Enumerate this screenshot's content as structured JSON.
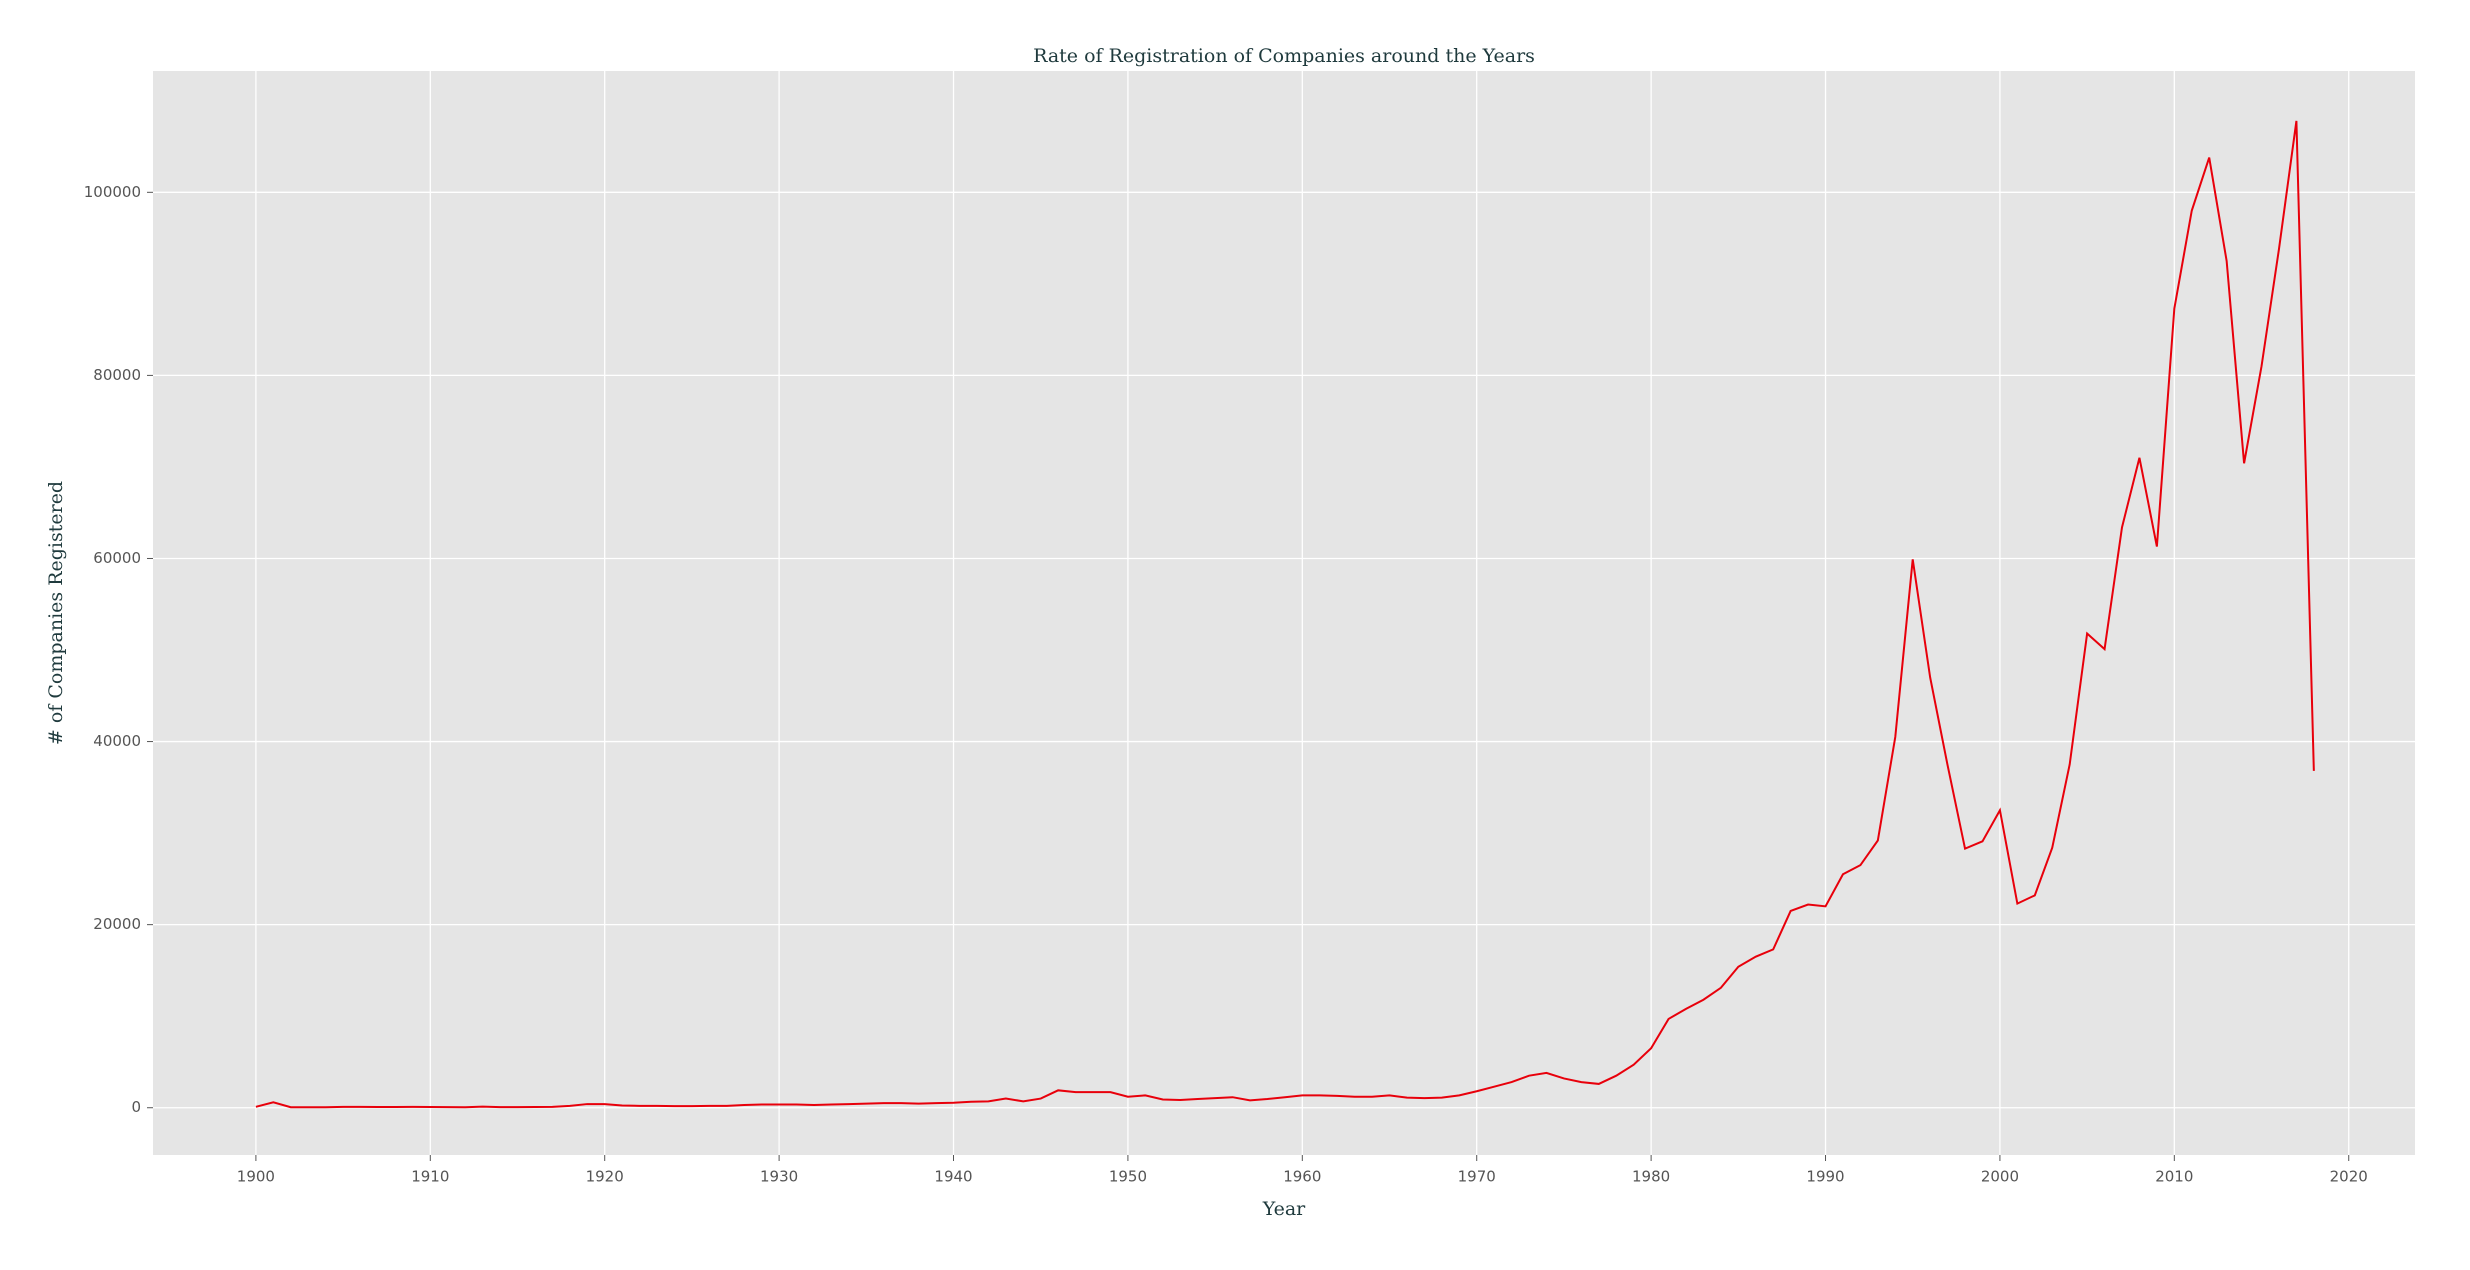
{
  "chart_data": {
    "type": "line",
    "title": "Rate of Registration of Companies around the Years",
    "x_label": "Year",
    "y_label": "# of Companies Registered",
    "x": [
      1900,
      1901,
      1902,
      1903,
      1904,
      1905,
      1906,
      1907,
      1908,
      1909,
      1910,
      1911,
      1912,
      1913,
      1914,
      1915,
      1916,
      1917,
      1918,
      1919,
      1920,
      1921,
      1922,
      1923,
      1924,
      1925,
      1926,
      1927,
      1928,
      1929,
      1930,
      1931,
      1932,
      1933,
      1934,
      1935,
      1936,
      1937,
      1938,
      1939,
      1940,
      1941,
      1942,
      1943,
      1944,
      1945,
      1946,
      1947,
      1948,
      1949,
      1950,
      1951,
      1952,
      1953,
      1954,
      1955,
      1956,
      1957,
      1958,
      1959,
      1960,
      1961,
      1962,
      1963,
      1964,
      1965,
      1966,
      1967,
      1968,
      1969,
      1970,
      1971,
      1972,
      1973,
      1974,
      1975,
      1976,
      1977,
      1978,
      1979,
      1980,
      1981,
      1982,
      1983,
      1984,
      1985,
      1986,
      1987,
      1988,
      1989,
      1990,
      1991,
      1992,
      1993,
      1994,
      1995,
      1996,
      1997,
      1998,
      1999,
      2000,
      2001,
      2002,
      2003,
      2004,
      2005,
      2006,
      2007,
      2008,
      2009,
      2010,
      2011,
      2012,
      2013,
      2014,
      2015,
      2016,
      2017,
      2018
    ],
    "series": [
      {
        "color": "#e8000b",
        "values": [
          100,
          600,
          50,
          50,
          50,
          100,
          100,
          80,
          80,
          100,
          80,
          60,
          50,
          120,
          60,
          60,
          80,
          100,
          200,
          400,
          400,
          250,
          200,
          200,
          180,
          180,
          200,
          200,
          300,
          350,
          350,
          350,
          300,
          350,
          400,
          450,
          500,
          500,
          450,
          500,
          550,
          650,
          700,
          1000,
          700,
          1000,
          1900,
          1700,
          1700,
          1700,
          1200,
          1350,
          900,
          850,
          950,
          1050,
          1150,
          800,
          950,
          1150,
          1350,
          1350,
          1300,
          1200,
          1200,
          1350,
          1100,
          1050,
          1100,
          1350,
          1800,
          2300,
          2800,
          3500,
          3800,
          3200,
          2800,
          2600,
          3500,
          4700,
          6500,
          9700,
          10800,
          11800,
          13100,
          15400,
          16500,
          17300,
          21500,
          22200,
          22000,
          25500,
          26500,
          29200,
          40500,
          59900,
          47000,
          37400,
          28300,
          29100,
          32500,
          22300,
          23200,
          28400,
          37500,
          51800,
          50100,
          63400,
          71000,
          61300,
          87300,
          98000,
          103800,
          92500,
          70400,
          81000,
          93800,
          107800,
          36800
        ]
      }
    ],
    "xlim": [
      1894.1,
      2023.8
    ],
    "ylim": [
      -5164,
      113253
    ],
    "xticks": [
      1900,
      1910,
      1920,
      1930,
      1940,
      1950,
      1960,
      1970,
      1980,
      1990,
      2000,
      2010,
      2020
    ],
    "yticks": [
      0,
      20000,
      40000,
      60000,
      80000,
      100000
    ],
    "grid": true
  }
}
